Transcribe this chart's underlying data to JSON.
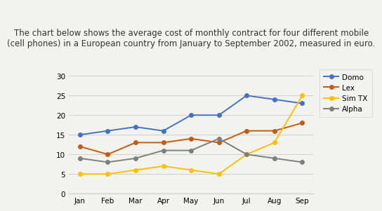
{
  "title_line1": "The chart below shows the average cost of monthly contract for four different mobile",
  "title_line2": "(cell phones) in a European country from January to September 2002, measured in euro.",
  "months": [
    "Jan",
    "Feb",
    "Mar",
    "Apr",
    "May",
    "Jun",
    "Jul",
    "Aug",
    "Sep"
  ],
  "series": {
    "Domo": [
      15,
      16,
      17,
      16,
      20,
      20,
      25,
      24,
      23
    ],
    "Lex": [
      12,
      10,
      13,
      13,
      14,
      13,
      16,
      16,
      18
    ],
    "Sim TX": [
      5,
      5,
      6,
      7,
      6,
      5,
      10,
      13,
      25
    ],
    "Alpha": [
      9,
      8,
      9,
      11,
      11,
      14,
      10,
      9,
      8
    ]
  },
  "colors": {
    "Domo": "#4472C4",
    "Lex": "#C55A11",
    "Sim TX": "#FFC000",
    "Alpha": "#7F7F7F"
  },
  "ylim": [
    0,
    32
  ],
  "yticks": [
    0,
    5,
    10,
    15,
    20,
    25,
    30
  ],
  "background_color": "#f2f2ee",
  "title_fontsize": 8.5,
  "legend_fontsize": 7.5,
  "tick_fontsize": 7.5,
  "marker": "o",
  "marker_size": 4,
  "linewidth": 1.4
}
